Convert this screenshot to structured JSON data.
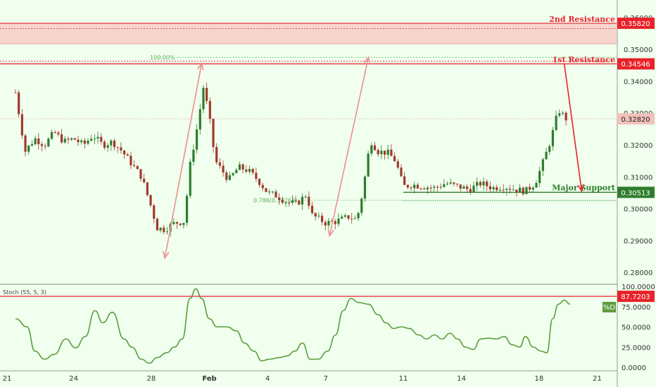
{
  "colors": {
    "background": "#f0ffee",
    "resistance": "#e8222a",
    "resistance_zone": "#f7c7c1",
    "support": "#2e7d2e",
    "current_price_tag": "#f3c1bb",
    "candle_up": "#2e7d2e",
    "candle_down": "#a03a2c",
    "projection_arrow": "#ef8f8f",
    "forecast_arrow": "#e8222a",
    "fib_line": "#5aa95a",
    "stoch_line": "#5c9c3c",
    "stoch_tag": "#5c9c3c",
    "axis_text": "#333333"
  },
  "chart_data": {
    "type": "candlestick",
    "price_axis": {
      "ylim": [
        0.2765,
        0.3655
      ],
      "ticks": [
        "0.28000",
        "0.29000",
        "0.30000",
        "0.31000",
        "0.32000",
        "0.33000",
        "0.34000",
        "0.35000",
        "0.36000"
      ]
    },
    "date_axis": {
      "ticks": [
        "21",
        "24",
        "28",
        "Feb",
        "4",
        "7",
        "11",
        "14",
        "18",
        "21"
      ],
      "positions": [
        0,
        3,
        7,
        10,
        13,
        16,
        20,
        23,
        27,
        30
      ]
    },
    "candle_series": [
      {
        "x": 0,
        "y": 0.3365
      },
      {
        "x": 0.5,
        "y": 0.318
      },
      {
        "x": 1,
        "y": 0.322
      },
      {
        "x": 1.5,
        "y": 0.32
      },
      {
        "x": 2,
        "y": 0.324
      },
      {
        "x": 2.5,
        "y": 0.321
      },
      {
        "x": 3,
        "y": 0.322
      },
      {
        "x": 3.5,
        "y": 0.32
      },
      {
        "x": 4,
        "y": 0.323
      },
      {
        "x": 4.5,
        "y": 0.32
      },
      {
        "x": 5,
        "y": 0.321
      },
      {
        "x": 5.5,
        "y": 0.318
      },
      {
        "x": 6,
        "y": 0.314
      },
      {
        "x": 6.5,
        "y": 0.31
      },
      {
        "x": 7,
        "y": 0.3005
      },
      {
        "x": 7.3,
        "y": 0.294
      },
      {
        "x": 7.7,
        "y": 0.2935
      },
      {
        "x": 8.2,
        "y": 0.2955
      },
      {
        "x": 8.7,
        "y": 0.296
      },
      {
        "x": 9.0,
        "y": 0.3135
      },
      {
        "x": 9.4,
        "y": 0.3265
      },
      {
        "x": 9.7,
        "y": 0.3385
      },
      {
        "x": 10.0,
        "y": 0.3285
      },
      {
        "x": 10.3,
        "y": 0.315
      },
      {
        "x": 11.0,
        "y": 0.309
      },
      {
        "x": 11.5,
        "y": 0.313
      },
      {
        "x": 12.0,
        "y": 0.312
      },
      {
        "x": 12.5,
        "y": 0.309
      },
      {
        "x": 13.0,
        "y": 0.305
      },
      {
        "x": 13.5,
        "y": 0.304
      },
      {
        "x": 14.0,
        "y": 0.302
      },
      {
        "x": 14.5,
        "y": 0.3015
      },
      {
        "x": 15.0,
        "y": 0.3045
      },
      {
        "x": 15.3,
        "y": 0.298
      },
      {
        "x": 16.0,
        "y": 0.2955
      },
      {
        "x": 16.5,
        "y": 0.296
      },
      {
        "x": 17.2,
        "y": 0.2975
      },
      {
        "x": 17.6,
        "y": 0.2965
      },
      {
        "x": 17.9,
        "y": 0.305
      },
      {
        "x": 18.3,
        "y": 0.3215
      },
      {
        "x": 18.7,
        "y": 0.318
      },
      {
        "x": 19.2,
        "y": 0.3175
      },
      {
        "x": 19.6,
        "y": 0.315
      },
      {
        "x": 20.0,
        "y": 0.307
      },
      {
        "x": 20.5,
        "y": 0.3075
      },
      {
        "x": 21.0,
        "y": 0.307
      },
      {
        "x": 21.6,
        "y": 0.3065
      },
      {
        "x": 22.2,
        "y": 0.308
      },
      {
        "x": 22.8,
        "y": 0.307
      },
      {
        "x": 23.4,
        "y": 0.306
      },
      {
        "x": 24.0,
        "y": 0.308
      },
      {
        "x": 24.6,
        "y": 0.3065
      },
      {
        "x": 25.2,
        "y": 0.307
      },
      {
        "x": 25.8,
        "y": 0.306
      },
      {
        "x": 26.3,
        "y": 0.3055
      },
      {
        "x": 26.8,
        "y": 0.308
      },
      {
        "x": 27.2,
        "y": 0.3145
      },
      {
        "x": 27.6,
        "y": 0.3215
      },
      {
        "x": 28.0,
        "y": 0.331
      },
      {
        "x": 28.4,
        "y": 0.3282
      }
    ],
    "projection_arrows": [
      {
        "from": {
          "x": 7.7,
          "y": 0.2845
        },
        "to": {
          "x": 9.6,
          "y": 0.3456
        }
      },
      {
        "from": {
          "x": 16.2,
          "y": 0.2915
        },
        "to": {
          "x": 18.2,
          "y": 0.3475
        }
      }
    ],
    "forecast_arrow": {
      "from": {
        "x": 28.3,
        "y": 0.3455
      },
      "to": {
        "x": 29.2,
        "y": 0.3055
      }
    },
    "resistance_2": {
      "label": "2nd Resistance",
      "value": "0.35820",
      "y": 0.3582,
      "zone": [
        0.3518,
        0.3582
      ],
      "dotted": 0.3565
    },
    "resistance_1": {
      "label": "1st Resistance",
      "value": "0.34546",
      "y": 0.34546,
      "dotted": 0.3463
    },
    "major_support": {
      "label": "Major Support",
      "value": "0.30513",
      "y": 0.30513,
      "x_start": 20.0,
      "dotted": 0.3025
    },
    "current_price": {
      "value": "0.32820",
      "y": 0.3282
    },
    "fib_100": {
      "label": "100.00%",
      "y": 0.3475,
      "x_start": 8.3
    },
    "fib_786": {
      "label": "0.786(0.30263)",
      "y": 0.30263,
      "x_start": 14.6
    },
    "stochastic": {
      "label": "Stoch (55, 5, 3)",
      "ylim": [
        0,
        100
      ],
      "ticks": [
        "0.0000",
        "25.0000",
        "50.0000",
        "75.0000",
        "100.0000"
      ],
      "level": {
        "value": "87.7203",
        "y": 87.7203
      },
      "series_tag": "%D",
      "d_values": [
        {
          "x": 0,
          "y": 60
        },
        {
          "x": 0.6,
          "y": 50
        },
        {
          "x": 1.0,
          "y": 20
        },
        {
          "x": 1.5,
          "y": 10
        },
        {
          "x": 2.0,
          "y": 16
        },
        {
          "x": 2.6,
          "y": 35
        },
        {
          "x": 3.1,
          "y": 24
        },
        {
          "x": 3.6,
          "y": 38
        },
        {
          "x": 4.1,
          "y": 70
        },
        {
          "x": 4.5,
          "y": 55
        },
        {
          "x": 5.0,
          "y": 68
        },
        {
          "x": 5.6,
          "y": 35
        },
        {
          "x": 6.0,
          "y": 25
        },
        {
          "x": 6.5,
          "y": 10
        },
        {
          "x": 6.9,
          "y": 5
        },
        {
          "x": 7.3,
          "y": 12
        },
        {
          "x": 7.8,
          "y": 18
        },
        {
          "x": 8.2,
          "y": 25
        },
        {
          "x": 8.6,
          "y": 35
        },
        {
          "x": 9.0,
          "y": 85
        },
        {
          "x": 9.3,
          "y": 97
        },
        {
          "x": 9.6,
          "y": 85
        },
        {
          "x": 10.0,
          "y": 60
        },
        {
          "x": 10.4,
          "y": 50
        },
        {
          "x": 10.9,
          "y": 50
        },
        {
          "x": 11.4,
          "y": 45
        },
        {
          "x": 11.8,
          "y": 30
        },
        {
          "x": 12.3,
          "y": 20
        },
        {
          "x": 12.7,
          "y": 8
        },
        {
          "x": 13.1,
          "y": 10
        },
        {
          "x": 13.6,
          "y": 12
        },
        {
          "x": 14.0,
          "y": 14
        },
        {
          "x": 14.4,
          "y": 20
        },
        {
          "x": 14.8,
          "y": 30
        },
        {
          "x": 15.2,
          "y": 10
        },
        {
          "x": 15.6,
          "y": 10
        },
        {
          "x": 16.1,
          "y": 20
        },
        {
          "x": 16.5,
          "y": 40
        },
        {
          "x": 16.9,
          "y": 70
        },
        {
          "x": 17.3,
          "y": 85
        },
        {
          "x": 17.7,
          "y": 80
        },
        {
          "x": 18.2,
          "y": 78
        },
        {
          "x": 18.7,
          "y": 65
        },
        {
          "x": 19.1,
          "y": 55
        },
        {
          "x": 19.5,
          "y": 48
        },
        {
          "x": 19.9,
          "y": 50
        },
        {
          "x": 20.3,
          "y": 48
        },
        {
          "x": 20.8,
          "y": 40
        },
        {
          "x": 21.2,
          "y": 35
        },
        {
          "x": 21.6,
          "y": 40
        },
        {
          "x": 22.0,
          "y": 35
        },
        {
          "x": 22.4,
          "y": 42
        },
        {
          "x": 22.8,
          "y": 35
        },
        {
          "x": 23.2,
          "y": 25
        },
        {
          "x": 23.6,
          "y": 22
        },
        {
          "x": 24.0,
          "y": 35
        },
        {
          "x": 24.4,
          "y": 36
        },
        {
          "x": 24.8,
          "y": 35
        },
        {
          "x": 25.2,
          "y": 38
        },
        {
          "x": 25.6,
          "y": 28
        },
        {
          "x": 26.0,
          "y": 25
        },
        {
          "x": 26.3,
          "y": 38
        },
        {
          "x": 26.7,
          "y": 25
        },
        {
          "x": 27.1,
          "y": 20
        },
        {
          "x": 27.4,
          "y": 18
        },
        {
          "x": 27.7,
          "y": 60
        },
        {
          "x": 28.0,
          "y": 78
        },
        {
          "x": 28.3,
          "y": 83
        },
        {
          "x": 28.6,
          "y": 78
        }
      ]
    }
  }
}
